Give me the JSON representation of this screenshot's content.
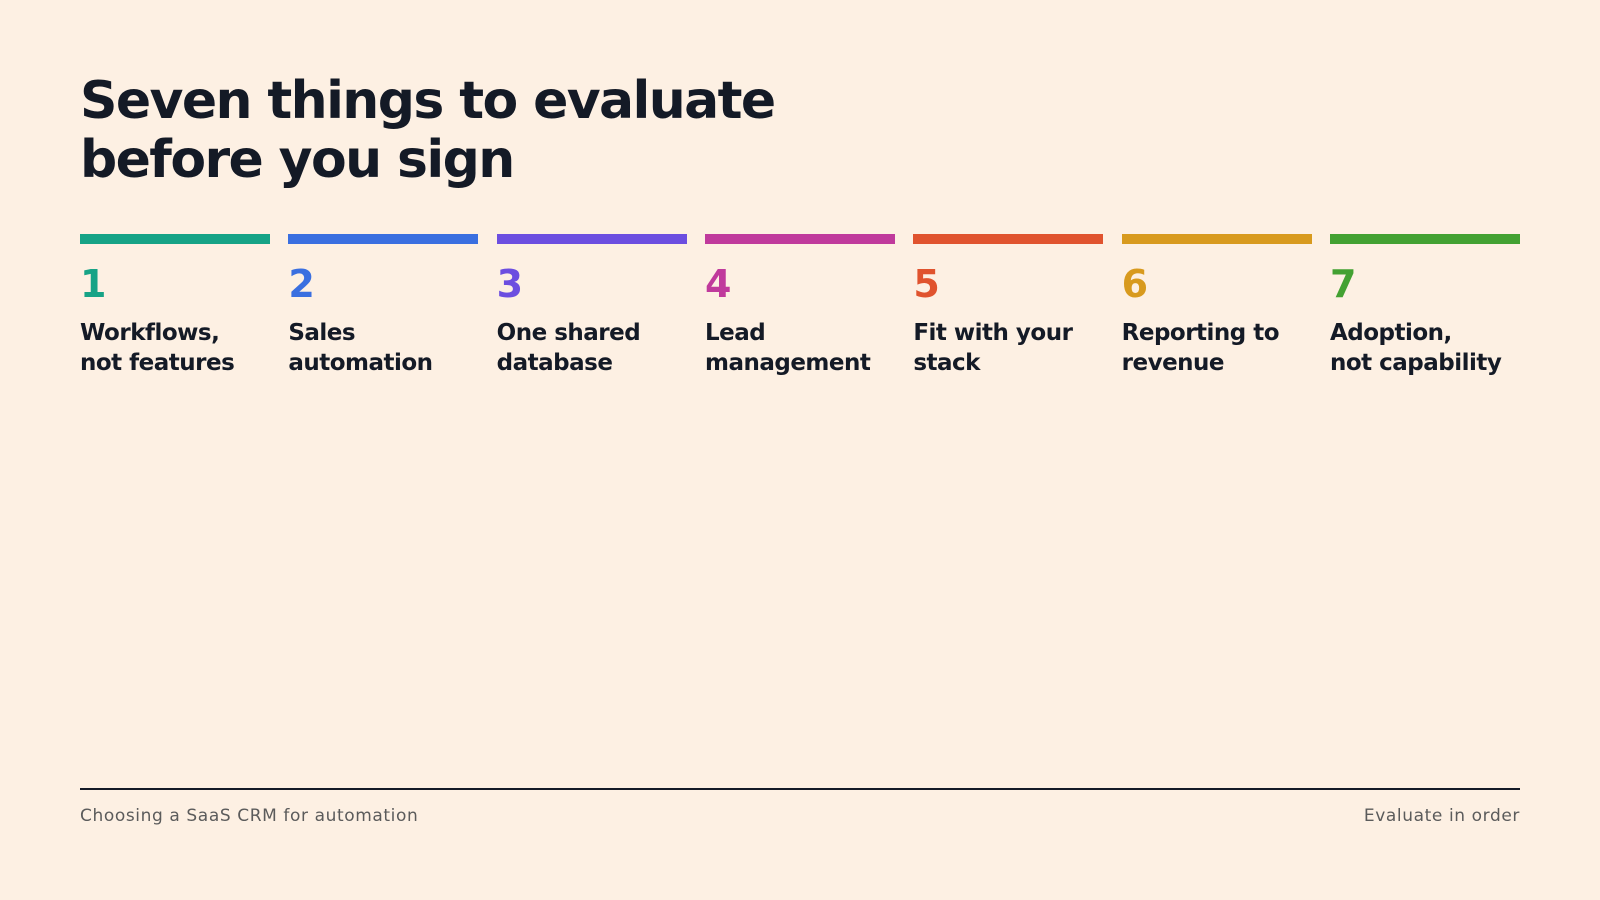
{
  "title": {
    "line1": "Seven things to evaluate",
    "line2": "before you sign"
  },
  "steps": [
    {
      "number": "1",
      "label_line1": "Workflows,",
      "label_line2": "not features",
      "color": "#17a386"
    },
    {
      "number": "2",
      "label_line1": "Sales",
      "label_line2": "automation",
      "color": "#3a6fe0"
    },
    {
      "number": "3",
      "label_line1": "One shared",
      "label_line2": "database",
      "color": "#6c4ee0"
    },
    {
      "number": "4",
      "label_line1": "Lead",
      "label_line2": "management",
      "color": "#c03a9c"
    },
    {
      "number": "5",
      "label_line1": "Fit with your",
      "label_line2": "stack",
      "color": "#e0532e"
    },
    {
      "number": "6",
      "label_line1": "Reporting to",
      "label_line2": "revenue",
      "color": "#d89a1e"
    },
    {
      "number": "7",
      "label_line1": "Adoption,",
      "label_line2": "not capability",
      "color": "#43a132"
    }
  ],
  "footer": {
    "left": "Choosing a SaaS CRM for automation",
    "right": "Evaluate in order"
  }
}
